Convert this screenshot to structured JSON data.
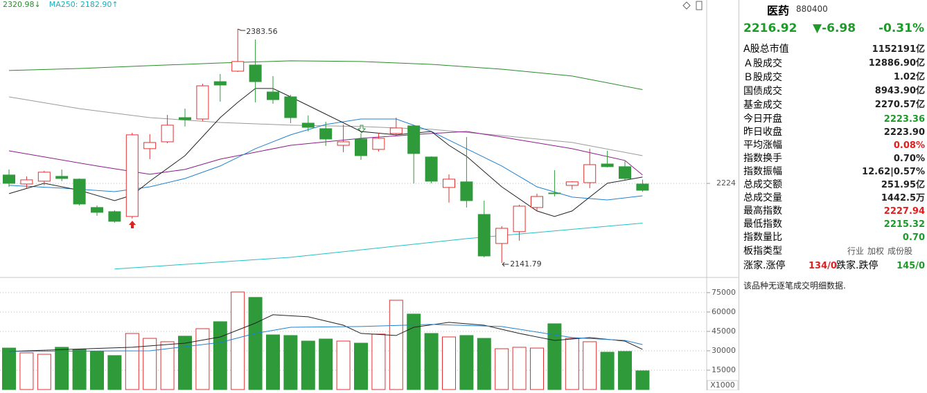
{
  "chart_data": [
    {
      "type": "candlestick",
      "header_labels": [
        {
          "text": "2320.98↓",
          "color": "#2a8a2a"
        },
        {
          "text": "MA250: 2182.90↑",
          "color": "#19aebb"
        }
      ],
      "high_label": "2383.56",
      "low_label": "2141.79",
      "up_color": "#e03030",
      "down_color": "#2e9a3a",
      "open": [
        2232.7,
        2223.4,
        2226.3,
        2231.3,
        2228.4,
        2199.1,
        2194.8,
        2189.8,
        2259.9,
        2267.0,
        2292.0,
        2290.6,
        2329.2,
        2340.0,
        2346.4,
        2318.5,
        2313.5,
        2286.3,
        2280.6,
        2263.4,
        2269.9,
        2259.2,
        2275.6,
        2283.5,
        2251.3,
        2219.8,
        2225.6,
        2191.9,
        2161.9,
        2174.1,
        2199.1,
        2214.1,
        2222.0,
        2224.8,
        2244.1,
        2241.3,
        2223.36
      ],
      "high": [
        2238.4,
        2231.3,
        2237.0,
        2238.4,
        2229.1,
        2201.2,
        2196.2,
        2276.3,
        2274.9,
        2294.9,
        2301.3,
        2327.1,
        2337.1,
        2383.56,
        2372.8,
        2334.9,
        2315.6,
        2294.2,
        2287.8,
        2284.9,
        2275.6,
        2276.3,
        2292.0,
        2284.2,
        2252.0,
        2233.4,
        2272.0,
        2206.2,
        2179.8,
        2202.0,
        2213.4,
        2237.7,
        2226.3,
        2259.9,
        2257.7,
        2247.0,
        2227.94
      ],
      "low": [
        2220.5,
        2219.1,
        2222.0,
        2226.3,
        2201.2,
        2190.5,
        2183.4,
        2187.7,
        2249.1,
        2265.6,
        2282.8,
        2288.5,
        2308.5,
        2339.2,
        2307.8,
        2306.3,
        2286.3,
        2277.7,
        2262.7,
        2256.3,
        2248.4,
        2257.0,
        2273.5,
        2224.1,
        2224.1,
        2204.1,
        2199.1,
        2147.6,
        2141.79,
        2164.8,
        2195.5,
        2210.5,
        2217.7,
        2219.1,
        2240.6,
        2227.7,
        2215.32
      ],
      "close": [
        2224.1,
        2227.7,
        2235.6,
        2229.1,
        2202.7,
        2194.1,
        2184.8,
        2274.2,
        2266.3,
        2284.2,
        2289.9,
        2324.9,
        2325.7,
        2350.0,
        2329.2,
        2310.6,
        2292.0,
        2282.0,
        2269.9,
        2267.0,
        2252.7,
        2270.6,
        2281.3,
        2254.9,
        2226.3,
        2228.4,
        2206.2,
        2149.0,
        2177.6,
        2200.5,
        2210.5,
        2213.4,
        2225.6,
        2243.4,
        2241.3,
        2229.1,
        2216.92
      ],
      "lines": [
        {
          "color": "#2a8a2a",
          "x": [
            0,
            4,
            8,
            12,
            16,
            20,
            24,
            28,
            32,
            36
          ],
          "values": [
            2340.7,
            2342.8,
            2345.7,
            2348.5,
            2350.7,
            2350.0,
            2347.1,
            2342.1,
            2335.0,
            2320.98
          ]
        },
        {
          "color": "#9a9a9a",
          "x": [
            0,
            4,
            8,
            12,
            16,
            20,
            24,
            28,
            32,
            36
          ],
          "values": [
            2313.5,
            2301.3,
            2292.0,
            2287.0,
            2284.2,
            2282.8,
            2279.9,
            2273.5,
            2266.3,
            2252.7
          ]
        },
        {
          "color": "#8b1a8b",
          "x": [
            0,
            5,
            8,
            10,
            12,
            16,
            20,
            24,
            26,
            28,
            32,
            35,
            36
          ],
          "values": [
            2257.7,
            2242.0,
            2233.4,
            2238.4,
            2249.1,
            2263.4,
            2270.6,
            2275.6,
            2277.7,
            2272.0,
            2259.9,
            2247.7,
            2232.7
          ]
        },
        {
          "color": "#1f80d0",
          "x": [
            0,
            3,
            6,
            8,
            10,
            12,
            14,
            16,
            18,
            20,
            22,
            24,
            26,
            28,
            30,
            32,
            34,
            36
          ],
          "values": [
            2222.0,
            2219.1,
            2215.5,
            2220.5,
            2229.1,
            2242.0,
            2259.9,
            2274.2,
            2284.9,
            2290.6,
            2290.6,
            2277.7,
            2259.9,
            2242.0,
            2220.5,
            2209.8,
            2206.9,
            2211.2
          ]
        },
        {
          "color": "#222222",
          "x": [
            0,
            2,
            4,
            6,
            7,
            8,
            10,
            12,
            13,
            14,
            15,
            16,
            18,
            20,
            22,
            24,
            25,
            26,
            28,
            30,
            31,
            32,
            34,
            36
          ],
          "values": [
            2213.4,
            2224.1,
            2216.9,
            2206.2,
            2211.9,
            2226.3,
            2252.7,
            2292.0,
            2307.8,
            2322.1,
            2322.1,
            2313.5,
            2295.6,
            2277.7,
            2274.2,
            2277.7,
            2263.4,
            2252.0,
            2220.5,
            2195.5,
            2189.8,
            2195.5,
            2224.1,
            2230.6
          ]
        },
        {
          "color": "#22c0c8",
          "x": [
            6,
            16,
            26,
            36
          ],
          "values": [
            2135.5,
            2147.6,
            2166.9,
            2182.9
          ]
        }
      ],
      "ylim": [
        2127.5,
        2413.6
      ],
      "yticks": [
        2224
      ],
      "grid": true
    },
    {
      "type": "bar",
      "unit_label": "X1000",
      "series": [
        {
          "values": [
            32100,
            28400,
            27300,
            32700,
            31100,
            29500,
            26300,
            43400,
            39600,
            37000,
            41300,
            47100,
            52500,
            75500,
            71300,
            42300,
            41800,
            37500,
            39100,
            37500,
            35900,
            42900,
            69100,
            58400,
            43400,
            40700,
            41800,
            39600,
            31600,
            32700,
            32100,
            50900,
            39600,
            37000,
            28900,
            29500,
            14500
          ]
        }
      ],
      "lines": [
        {
          "color": "#222222",
          "x": [
            0,
            7,
            10,
            12,
            14,
            15,
            17,
            19,
            20,
            22,
            23,
            25,
            27,
            29,
            31,
            33,
            35,
            36
          ],
          "values": [
            29500,
            32700,
            35900,
            40700,
            51400,
            57900,
            56300,
            49800,
            43400,
            41800,
            48200,
            52000,
            49800,
            43400,
            38000,
            40200,
            37500,
            31100
          ]
        },
        {
          "color": "#1f80d0",
          "x": [
            0,
            8,
            12,
            14,
            16,
            20,
            24,
            28,
            32,
            35,
            36
          ],
          "values": [
            29500,
            30000,
            36400,
            43400,
            48200,
            48800,
            50400,
            48800,
            40200,
            38000,
            34800
          ]
        }
      ],
      "ylim": [
        0,
        84600
      ],
      "yticks": [
        15000,
        30000,
        45000,
        60000,
        75000
      ],
      "grid": true
    }
  ],
  "quote": {
    "name": "医药",
    "code": "880400",
    "price": "2216.92",
    "change": "▼-6.98",
    "change_pct": "-0.31%",
    "color": "#1e9a2a",
    "groups": [
      [
        {
          "label": "A股总市值",
          "value": "1152191亿"
        }
      ],
      [
        {
          "label": "Ａ股成交",
          "value": "12886.90亿"
        },
        {
          "label": "Ｂ股成交",
          "value": "1.02亿"
        },
        {
          "label": "国债成交",
          "value": "8943.90亿"
        },
        {
          "label": "基金成交",
          "value": "2270.57亿"
        }
      ],
      [
        {
          "label": "今日开盘",
          "value": "2223.36",
          "color": "#1e9a2a"
        },
        {
          "label": "昨日收盘",
          "value": "2223.90"
        },
        {
          "label": "平均涨幅",
          "value": "0.08%",
          "color": "#e02020"
        },
        {
          "label": "指数换手",
          "value": "0.70%"
        },
        {
          "label": "指数振幅",
          "value": "12.62|0.57%"
        },
        {
          "label": "总成交额",
          "value": "251.95亿"
        },
        {
          "label": "总成交量",
          "value": "1442.5万"
        },
        {
          "label": "最高指数",
          "value": "2227.94",
          "color": "#e02020"
        },
        {
          "label": "最低指数",
          "value": "2215.32",
          "color": "#1e9a2a"
        },
        {
          "label": "指数量比",
          "value": "0.70",
          "color": "#1e9a2a"
        }
      ]
    ],
    "type_label": "板指类型",
    "type_options": [
      "行业",
      "加权",
      "成份股"
    ],
    "breadth": {
      "rise_label": "涨家.涨停",
      "rise": "134/0",
      "rise_color": "#e02020",
      "fall_label": "跌家.跌停",
      "fall": "145/0",
      "fall_color": "#1e9a2a"
    },
    "note": "该品种无逐笔成交明细数据."
  }
}
